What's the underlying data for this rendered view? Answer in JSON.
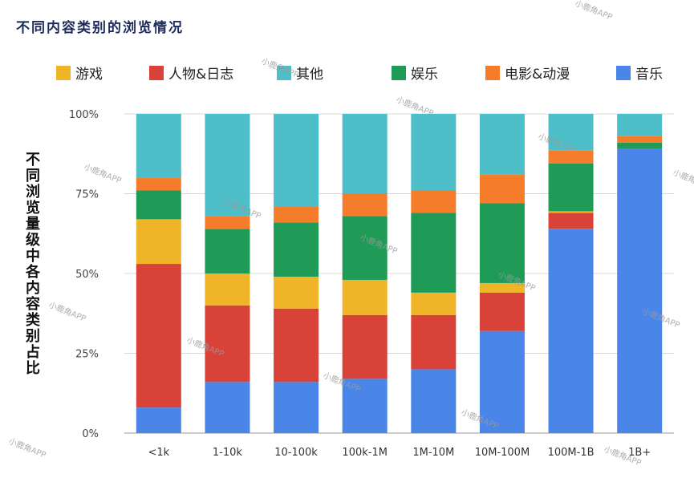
{
  "chart_data": {
    "type": "bar",
    "stacked": true,
    "title": "不同内容类别的浏览情况",
    "ylabel": "不同浏览量级中各内容类别占比",
    "xlabel": "",
    "ylim": [
      0,
      100
    ],
    "y_ticks": [
      "0%",
      "25%",
      "50%",
      "75%",
      "100%"
    ],
    "categories": [
      "<1k",
      "1-10k",
      "10-100k",
      "100k-1M",
      "1M-10M",
      "10M-100M",
      "100M-1B",
      "1B+"
    ],
    "series": [
      {
        "name": "音乐",
        "color": "#4a86e8",
        "values": [
          8,
          16,
          16,
          17,
          20,
          32,
          64,
          89
        ]
      },
      {
        "name": "人物&日志",
        "color": "#d94238",
        "values": [
          45,
          24,
          23,
          20,
          17,
          12,
          5,
          0
        ]
      },
      {
        "name": "游戏",
        "color": "#f0b428",
        "values": [
          14,
          10,
          10,
          11,
          7,
          3,
          0.5,
          0
        ]
      },
      {
        "name": "娱乐",
        "color": "#1f9a57",
        "values": [
          9,
          14,
          17,
          20,
          25,
          25,
          15,
          2
        ]
      },
      {
        "name": "电影&动漫",
        "color": "#f57c2a",
        "values": [
          4,
          4,
          5,
          7,
          7,
          9,
          4,
          2
        ]
      },
      {
        "name": "其他",
        "color": "#4ebec8",
        "values": [
          20,
          32,
          29,
          25,
          24,
          19,
          11.5,
          7
        ]
      }
    ],
    "legend_order": [
      "游戏",
      "人物&日志",
      "其他",
      "娱乐",
      "电影&动漫",
      "音乐"
    ]
  },
  "watermark_text": "小鹿角APP"
}
